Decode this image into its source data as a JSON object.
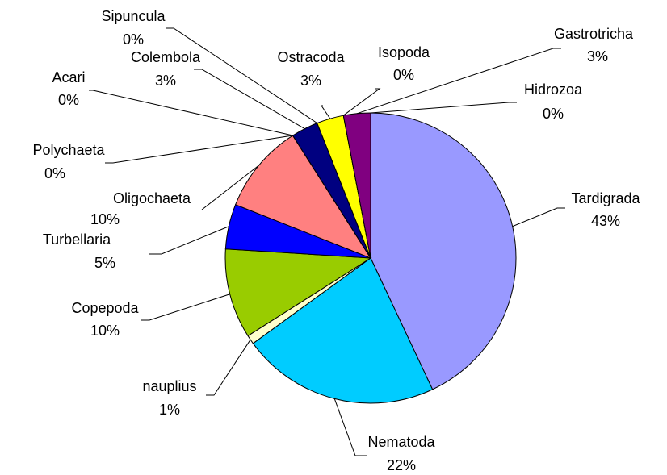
{
  "chart_data": {
    "type": "pie",
    "categories": [
      "Tardigrada",
      "Nematoda",
      "nauplius",
      "Copepoda",
      "Turbellaria",
      "Oligochaeta",
      "Polychaeta",
      "Acari",
      "Colembola",
      "Sipuncula",
      "Ostracoda",
      "Isopoda",
      "Gastrotricha",
      "Hidrozoa"
    ],
    "values": [
      43,
      22,
      1,
      10,
      5,
      10,
      0,
      0,
      3,
      0,
      3,
      0,
      3,
      0
    ],
    "value_labels": [
      "43%",
      "22%",
      "1%",
      "10%",
      "5%",
      "10%",
      "0%",
      "0%",
      "3%",
      "0%",
      "3%",
      "0%",
      "3%",
      "0%"
    ],
    "colors": [
      "#9999ff",
      "#00ccff",
      "#ffffcc",
      "#99cc00",
      "#0000ff",
      "#ff8080",
      "#333399",
      "#993366",
      "#000080",
      "#808080",
      "#ffff00",
      "#00ffff",
      "#800080",
      "#008080"
    ]
  }
}
